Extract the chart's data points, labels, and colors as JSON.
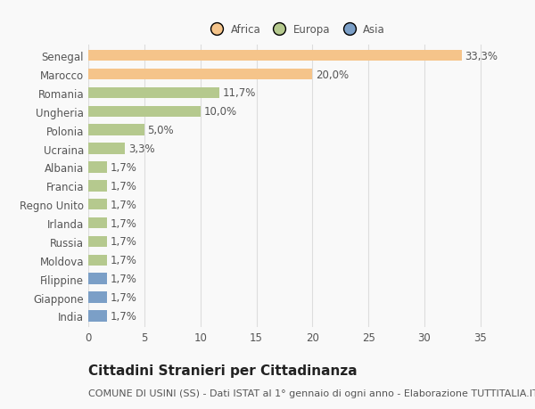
{
  "categories": [
    "Senegal",
    "Marocco",
    "Romania",
    "Ungheria",
    "Polonia",
    "Ucraina",
    "Albania",
    "Francia",
    "Regno Unito",
    "Irlanda",
    "Russia",
    "Moldova",
    "Filippine",
    "Giappone",
    "India"
  ],
  "values": [
    33.3,
    20.0,
    11.7,
    10.0,
    5.0,
    3.3,
    1.7,
    1.7,
    1.7,
    1.7,
    1.7,
    1.7,
    1.7,
    1.7,
    1.7
  ],
  "labels": [
    "33,3%",
    "20,0%",
    "11,7%",
    "10,0%",
    "5,0%",
    "3,3%",
    "1,7%",
    "1,7%",
    "1,7%",
    "1,7%",
    "1,7%",
    "1,7%",
    "1,7%",
    "1,7%",
    "1,7%"
  ],
  "colors": [
    "#f5c48a",
    "#f5c48a",
    "#b5c98e",
    "#b5c98e",
    "#b5c98e",
    "#b5c98e",
    "#b5c98e",
    "#b5c98e",
    "#b5c98e",
    "#b5c98e",
    "#b5c98e",
    "#b5c98e",
    "#7b9fc7",
    "#7b9fc7",
    "#7b9fc7"
  ],
  "continent_labels": [
    "Africa",
    "Europa",
    "Asia"
  ],
  "continent_colors": [
    "#f5c48a",
    "#b5c98e",
    "#7b9fc7"
  ],
  "xlim": [
    0,
    37
  ],
  "xticks": [
    0,
    5,
    10,
    15,
    20,
    25,
    30,
    35
  ],
  "title": "Cittadini Stranieri per Cittadinanza",
  "subtitle": "COMUNE DI USINI (SS) - Dati ISTAT al 1° gennaio di ogni anno - Elaborazione TUTTITALIA.IT",
  "bg_color": "#f9f9f9",
  "grid_color": "#dddddd",
  "bar_height": 0.6,
  "title_fontsize": 11,
  "subtitle_fontsize": 8,
  "label_fontsize": 8.5,
  "tick_fontsize": 8.5,
  "text_color": "#555555",
  "title_color": "#222222"
}
